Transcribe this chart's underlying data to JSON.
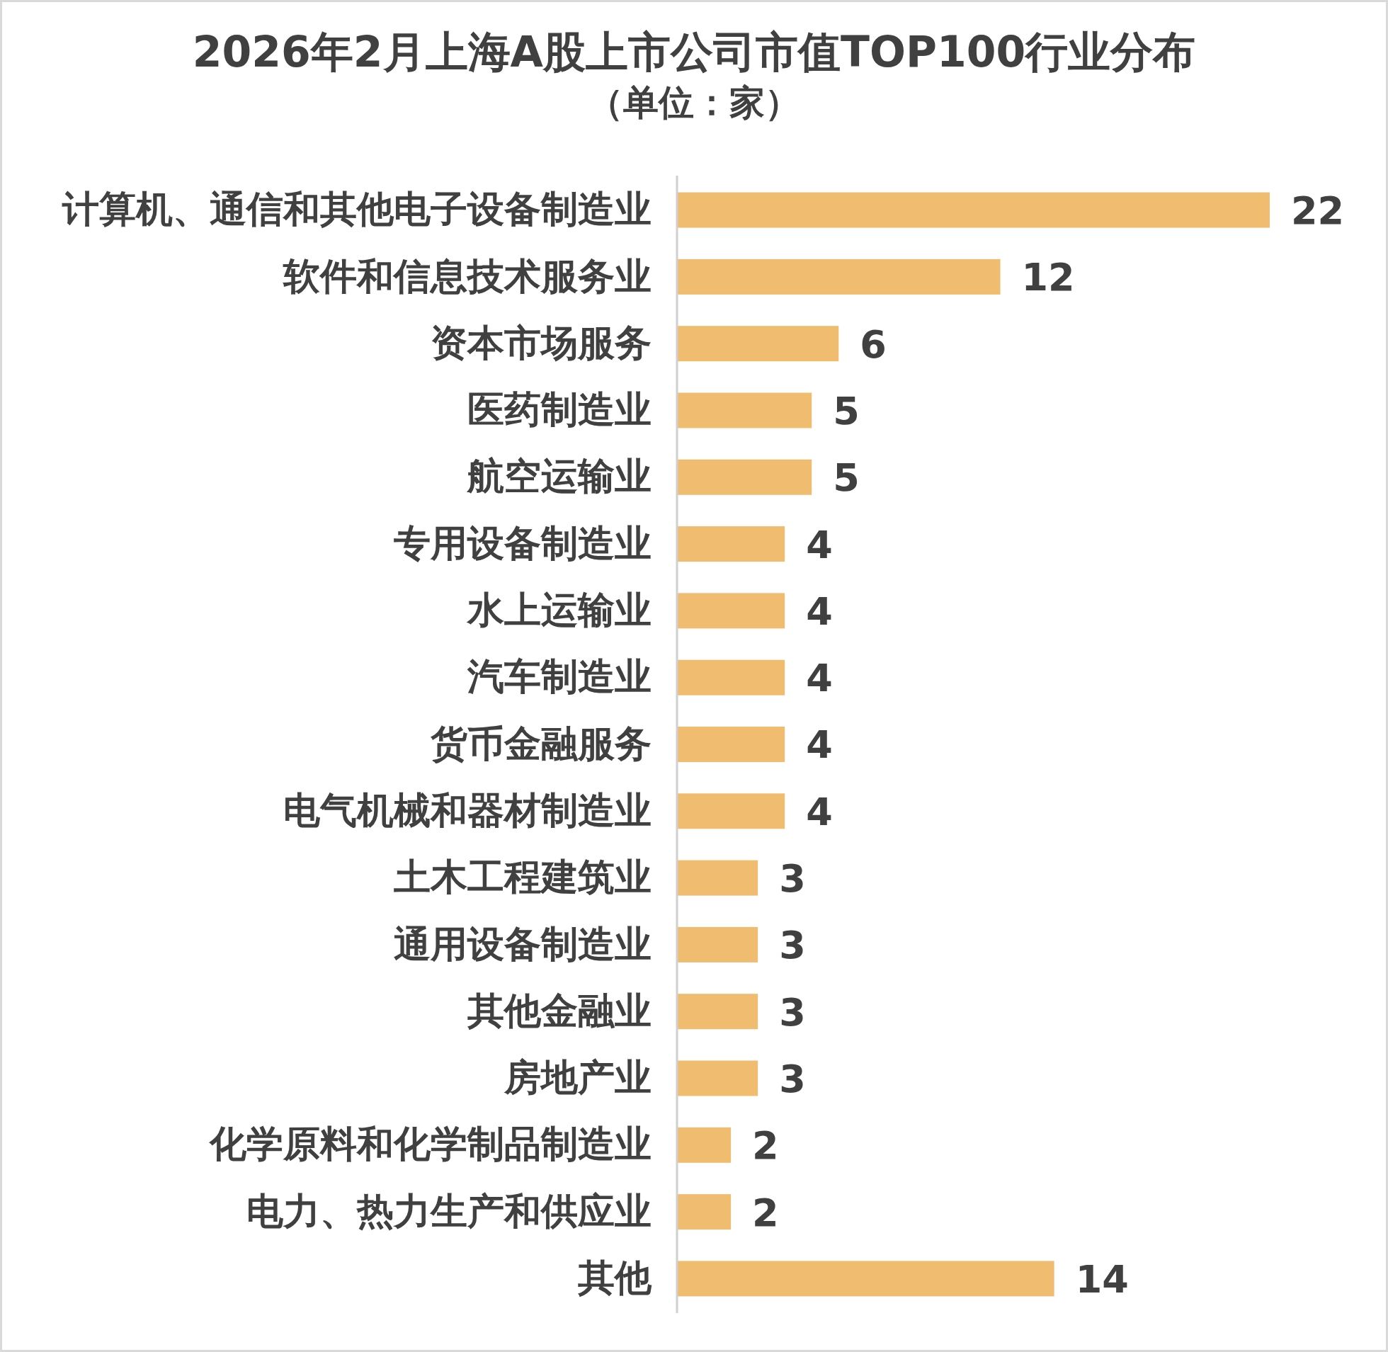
{
  "chart_data": {
    "type": "bar",
    "orientation": "horizontal",
    "title": "2026年2月上海A股上市公司市值TOP100行业分布",
    "subtitle": "（单位：家）",
    "categories": [
      "计算机、通信和其他电子设备制造业",
      "软件和信息技术服务业",
      "资本市场服务",
      "医药制造业",
      "航空运输业",
      "专用设备制造业",
      "水上运输业",
      "汽车制造业",
      "货币金融服务",
      "电气机械和器材制造业",
      "土木工程建筑业",
      "通用设备制造业",
      "其他金融业",
      "房地产业",
      "化学原料和化学制品制造业",
      "电力、热力生产和供应业",
      "其他"
    ],
    "values": [
      22,
      12,
      6,
      5,
      5,
      4,
      4,
      4,
      4,
      4,
      3,
      3,
      3,
      3,
      2,
      2,
      14
    ],
    "color": "#f0bc70",
    "data_labels": true
  }
}
